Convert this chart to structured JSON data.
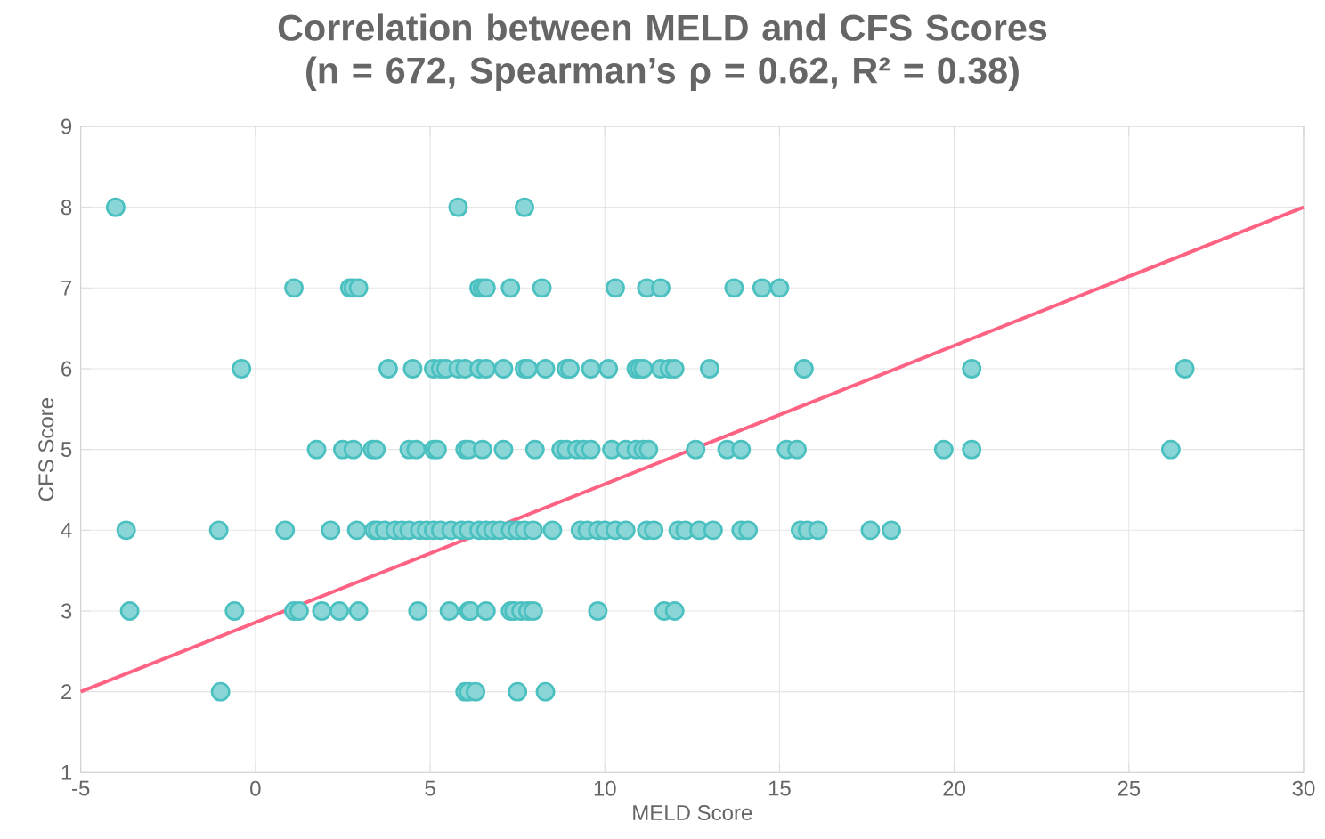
{
  "chart_data": {
    "type": "scatter",
    "title": "Correlation between MELD and CFS Scores (n = 672, Spearman’s ρ = 0.62, R² = 0.38)",
    "xlabel": "MELD Score",
    "ylabel": "CFS Score",
    "xlim": [
      -5,
      30
    ],
    "ylim": [
      1,
      9
    ],
    "xticks": [
      -5,
      0,
      5,
      10,
      15,
      20,
      25,
      30
    ],
    "yticks": [
      1,
      2,
      3,
      4,
      5,
      6,
      7,
      8,
      9
    ],
    "grid": true,
    "series": [
      {
        "marker": "circle",
        "color": "#4bc0c0",
        "x": [
          -4.0,
          5.8,
          7.7,
          1.1,
          2.7,
          2.8,
          2.95,
          6.4,
          6.5,
          6.6,
          7.3,
          8.2,
          10.3,
          11.2,
          11.6,
          13.7,
          14.5,
          15.0,
          -0.4,
          3.8,
          4.5,
          5.1,
          5.3,
          5.45,
          5.8,
          6.0,
          6.4,
          6.6,
          7.1,
          7.7,
          7.8,
          8.3,
          8.9,
          9.0,
          9.6,
          10.1,
          10.9,
          11.0,
          11.1,
          11.6,
          11.85,
          12.0,
          13.0,
          15.7,
          20.5,
          26.6,
          1.75,
          2.5,
          2.8,
          3.35,
          3.45,
          4.4,
          4.6,
          5.1,
          5.2,
          6.0,
          6.1,
          6.5,
          7.1,
          8.0,
          8.75,
          8.9,
          9.2,
          9.4,
          9.6,
          10.2,
          10.6,
          10.9,
          11.1,
          11.25,
          12.6,
          13.5,
          13.9,
          15.2,
          15.5,
          19.7,
          20.5,
          26.2,
          -3.7,
          -1.05,
          0.85,
          2.15,
          2.9,
          3.4,
          3.5,
          3.7,
          4.0,
          4.2,
          4.4,
          4.7,
          4.9,
          5.1,
          5.3,
          5.6,
          5.9,
          6.1,
          6.4,
          6.6,
          6.8,
          7.0,
          7.3,
          7.5,
          7.7,
          7.95,
          8.5,
          9.3,
          9.5,
          9.8,
          10.0,
          10.3,
          10.6,
          11.2,
          11.4,
          12.1,
          12.3,
          12.7,
          13.1,
          13.9,
          14.1,
          15.6,
          15.8,
          16.1,
          17.6,
          18.2,
          -3.6,
          -0.6,
          1.1,
          1.25,
          1.9,
          2.4,
          2.95,
          4.65,
          5.55,
          6.1,
          6.15,
          6.6,
          7.3,
          7.4,
          7.6,
          7.8,
          7.95,
          9.8,
          11.7,
          12.0,
          -1.0,
          6.0,
          6.1,
          6.3,
          7.5,
          8.3
        ],
        "values": [
          8,
          8,
          8,
          7,
          7,
          7,
          7,
          7,
          7,
          7,
          7,
          7,
          7,
          7,
          7,
          7,
          7,
          7,
          6,
          6,
          6,
          6,
          6,
          6,
          6,
          6,
          6,
          6,
          6,
          6,
          6,
          6,
          6,
          6,
          6,
          6,
          6,
          6,
          6,
          6,
          6,
          6,
          6,
          6,
          6,
          6,
          5,
          5,
          5,
          5,
          5,
          5,
          5,
          5,
          5,
          5,
          5,
          5,
          5,
          5,
          5,
          5,
          5,
          5,
          5,
          5,
          5,
          5,
          5,
          5,
          5,
          5,
          5,
          5,
          5,
          5,
          5,
          5,
          4,
          4,
          4,
          4,
          4,
          4,
          4,
          4,
          4,
          4,
          4,
          4,
          4,
          4,
          4,
          4,
          4,
          4,
          4,
          4,
          4,
          4,
          4,
          4,
          4,
          4,
          4,
          4,
          4,
          4,
          4,
          4,
          4,
          4,
          4,
          4,
          4,
          4,
          4,
          4,
          4,
          4,
          4,
          4,
          4,
          4,
          3,
          3,
          3,
          3,
          3,
          3,
          3,
          3,
          3,
          3,
          3,
          3,
          3,
          3,
          3,
          3,
          3,
          3,
          3,
          3,
          2,
          2,
          2,
          2,
          2,
          2
        ]
      },
      {
        "type": "line",
        "marker": "none",
        "color": "#ff6384",
        "x": [
          -5,
          30
        ],
        "values": [
          2,
          8
        ]
      }
    ]
  }
}
